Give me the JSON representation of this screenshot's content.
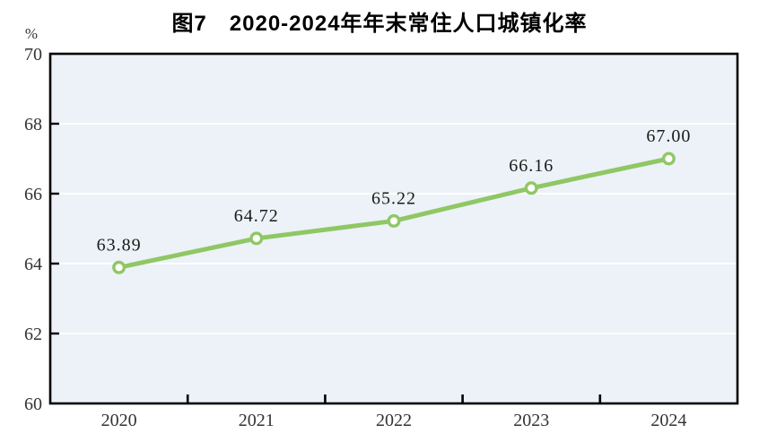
{
  "chart_data": {
    "type": "line",
    "title": "图7　2020-2024年年末常住人口城镇化率",
    "unit_label": "%",
    "categories": [
      "2020",
      "2021",
      "2022",
      "2023",
      "2024"
    ],
    "values": [
      63.89,
      64.72,
      65.22,
      66.16,
      67.0
    ],
    "data_labels": [
      "63.89",
      "64.72",
      "65.22",
      "66.16",
      "67.00"
    ],
    "xlabel": "",
    "ylabel": "%",
    "ylim": [
      60,
      70
    ],
    "y_ticks": [
      60,
      62,
      64,
      66,
      68,
      70
    ],
    "grid": true,
    "legend_position": "none",
    "colors": {
      "line": "#90C765",
      "marker_fill": "#FFFFFF",
      "marker_stroke": "#90C765",
      "plot_background": "#ECF2F7",
      "gridline": "#FFFFFF",
      "axis_border": "#000000",
      "tick_label": "#333333",
      "data_label": "#1a1a1a",
      "title": "#000000"
    }
  }
}
